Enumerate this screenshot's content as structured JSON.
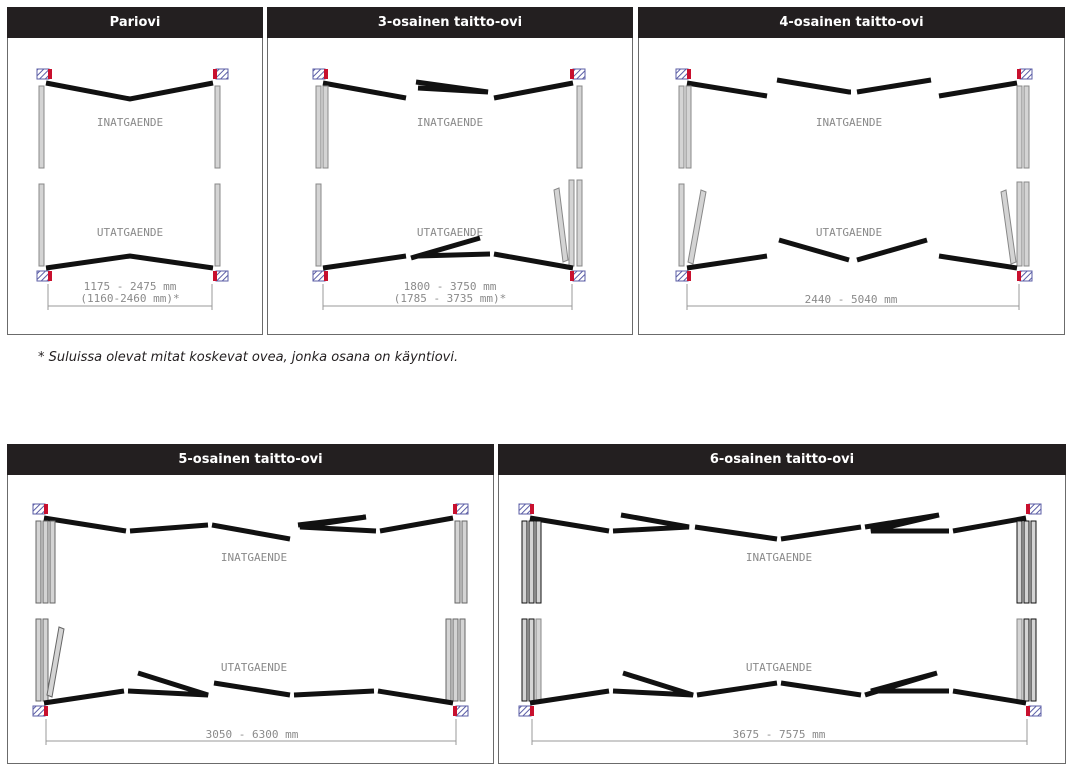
{
  "panels": [
    {
      "id": "pariovi",
      "title": "Pariovi",
      "inward_label": "INATGAENDE",
      "outward_label": "UTATGAENDE",
      "dimension": "1175 - 2475 mm",
      "dimension_note": "(1160-2460 mm)*"
    },
    {
      "id": "taittoovi-3",
      "title": "3-osainen taitto-ovi",
      "inward_label": "INATGAENDE",
      "outward_label": "UTATGAENDE",
      "dimension": "1800 - 3750 mm",
      "dimension_note": "(1785 - 3735 mm)*"
    },
    {
      "id": "taittoovi-4",
      "title": "4-osainen taitto-ovi",
      "inward_label": "INATGAENDE",
      "outward_label": "UTATGAENDE",
      "dimension": "2440 - 5040 mm"
    },
    {
      "id": "taittoovi-5",
      "title": "5-osainen taitto-ovi",
      "inward_label": "INATGAENDE",
      "outward_label": "UTATGAENDE",
      "dimension": "3050 - 6300 mm"
    },
    {
      "id": "taittoovi-6",
      "title": "6-osainen taitto-ovi",
      "inward_label": "INATGAENDE",
      "outward_label": "UTATGAENDE",
      "dimension": "3675 - 7575 mm"
    }
  ],
  "footnote": "* Suluissa olevat mitat koskevat ovea, jonka osana on käyntiovi.",
  "colors": {
    "header_bg": "#231f20",
    "header_text": "#ffffff",
    "door_leaf": "#111111",
    "door_leaf_open": "#d4d4d4",
    "frame_red": "#c8102e",
    "frame_hatch": "#5b5ea6",
    "label_gray": "#8a8a8a"
  }
}
